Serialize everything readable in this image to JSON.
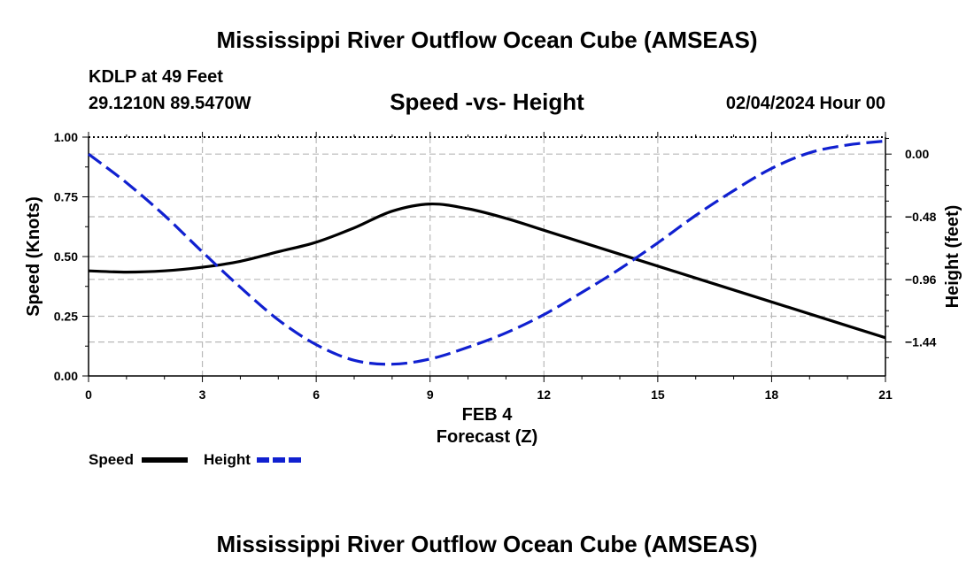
{
  "page": {
    "title_top": "Mississippi River Outflow Ocean Cube (AMSEAS)",
    "title_bottom": "Mississippi River Outflow Ocean Cube (AMSEAS)",
    "station": "KDLP at 49 Feet",
    "coords": "29.1210N  89.5470W",
    "date": "02/04/2024 Hour 00"
  },
  "chart_data": {
    "type": "line",
    "title": "Speed -vs- Height",
    "xlabel": "Forecast (Z)",
    "xsublabel": "FEB 4",
    "ylabel": "Speed (Knots)",
    "y2label": "Height (feet)",
    "xlim": [
      0,
      21
    ],
    "ylim": [
      0,
      1
    ],
    "y2lim": [
      -1.7,
      0.13
    ],
    "xticks": [
      0,
      3,
      6,
      9,
      12,
      15,
      18,
      21
    ],
    "xtick_labels": [
      "0",
      "3",
      "6",
      "9",
      "12",
      "15",
      "18",
      "21"
    ],
    "yticks": [
      0,
      0.25,
      0.5,
      0.75,
      1.0
    ],
    "ytick_labels": [
      "0.00",
      "0.25",
      "0.50",
      "0.75",
      "1.00"
    ],
    "y2ticks": [
      0,
      -0.48,
      -0.96,
      -1.44
    ],
    "y2tick_labels": [
      "0.00",
      "−0.48",
      "−0.96",
      "−1.44"
    ],
    "grid": true,
    "series": [
      {
        "name": "Speed",
        "axis": "left",
        "color": "#000000",
        "dash": "solid",
        "x": [
          0,
          1,
          2,
          3,
          4,
          5,
          6,
          7,
          8,
          9,
          10,
          11,
          12,
          13,
          14,
          15,
          16,
          17,
          18,
          19,
          20,
          21
        ],
        "values": [
          0.44,
          0.435,
          0.44,
          0.455,
          0.48,
          0.52,
          0.56,
          0.62,
          0.69,
          0.72,
          0.7,
          0.66,
          0.61,
          0.56,
          0.51,
          0.46,
          0.41,
          0.36,
          0.31,
          0.26,
          0.21,
          0.16
        ]
      },
      {
        "name": "Height",
        "axis": "right",
        "color": "#1020d0",
        "dash": "dashed",
        "x": [
          0,
          1,
          2,
          3,
          4,
          5,
          6,
          7,
          8,
          9,
          10,
          11,
          12,
          13,
          14,
          15,
          16,
          17,
          18,
          19,
          20,
          21
        ],
        "values": [
          0.0,
          -0.22,
          -0.47,
          -0.75,
          -1.02,
          -1.27,
          -1.46,
          -1.58,
          -1.61,
          -1.57,
          -1.48,
          -1.37,
          -1.23,
          -1.06,
          -0.88,
          -0.68,
          -0.47,
          -0.28,
          -0.11,
          0.01,
          0.07,
          0.1
        ]
      }
    ],
    "legend": {
      "placement": "bottom-left",
      "items": [
        "Speed",
        "Height"
      ]
    }
  }
}
